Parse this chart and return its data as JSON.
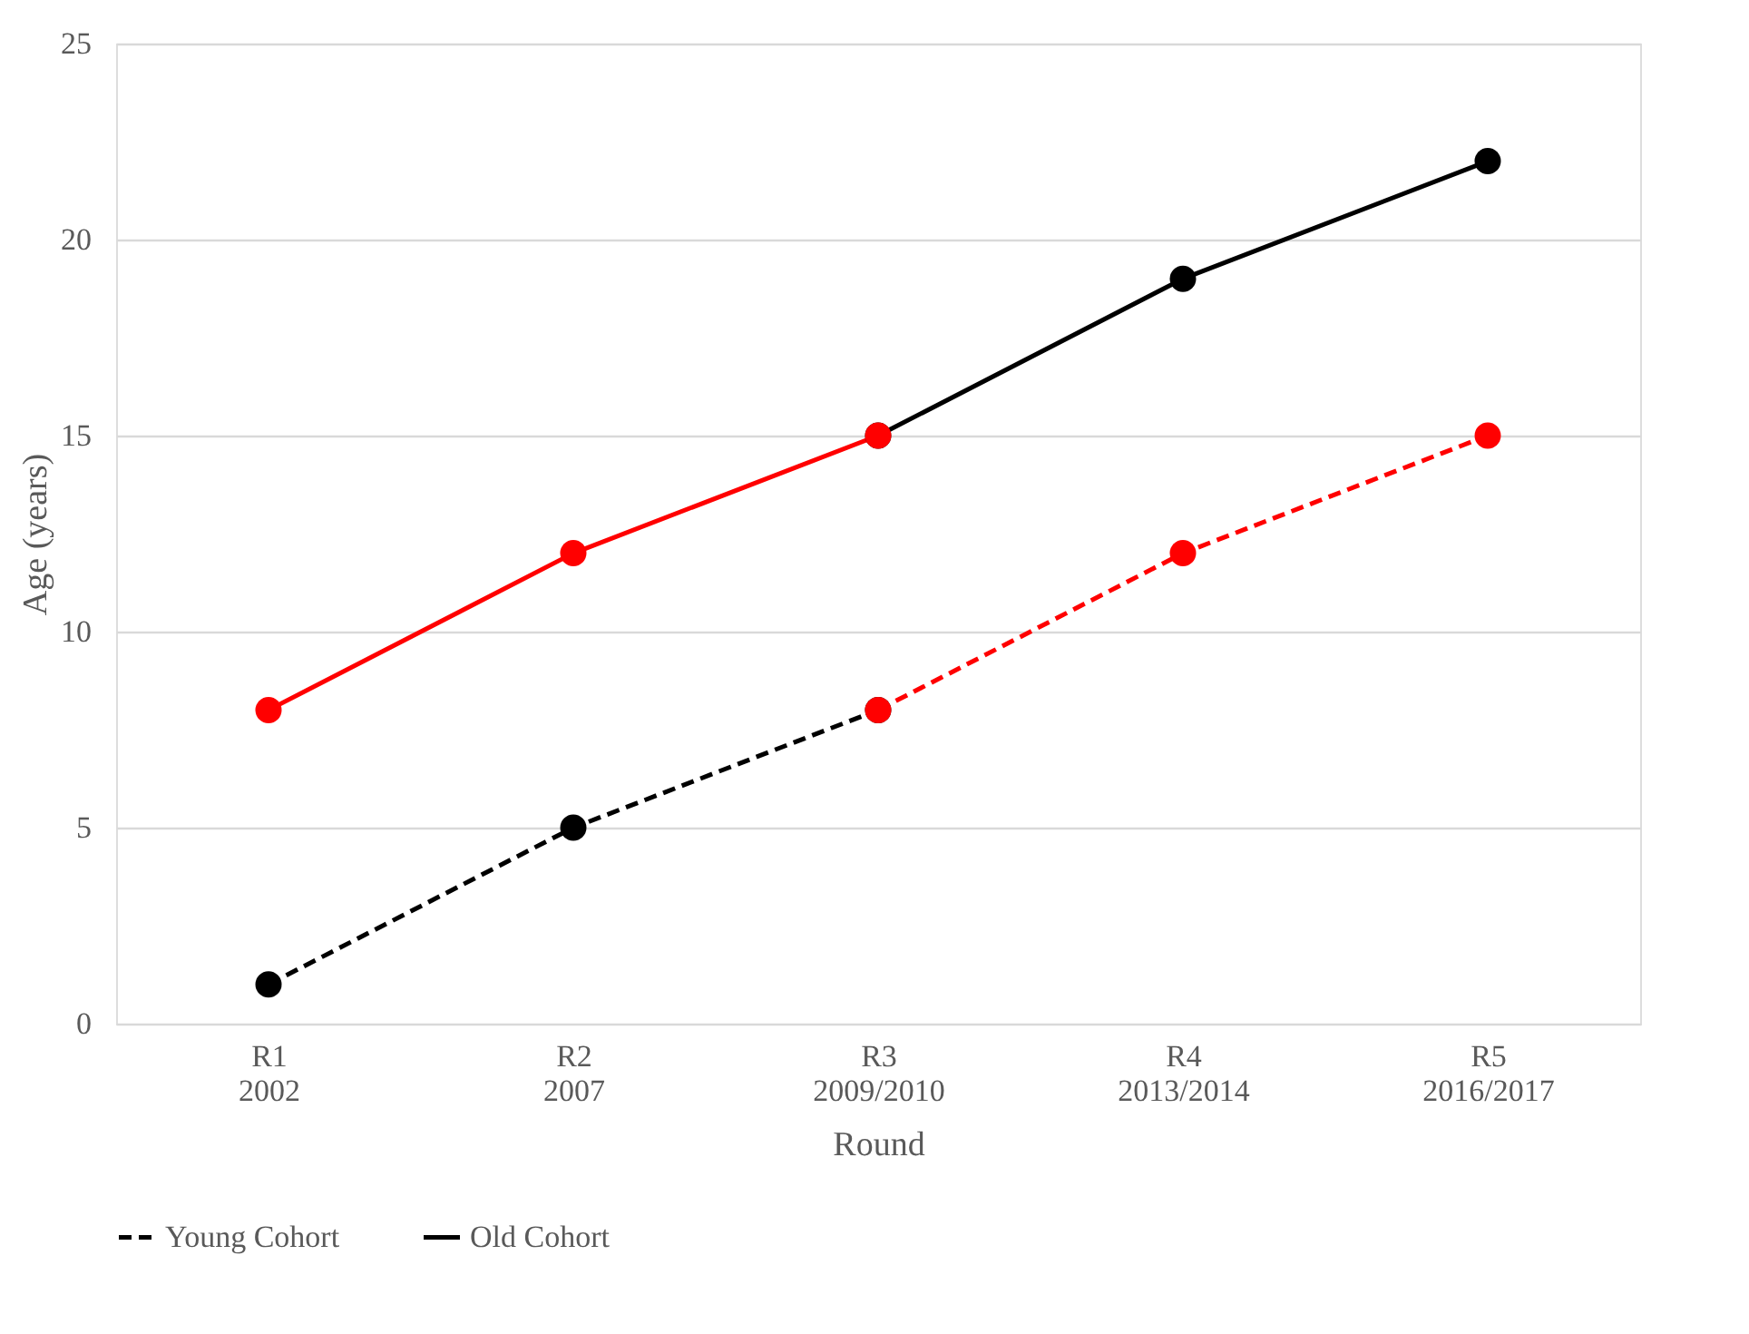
{
  "chart_data": {
    "type": "line",
    "xlabel": "Round",
    "ylabel": "Age (years)",
    "categories": [
      "R1\n2002",
      "R2\n2007",
      "R3\n2009/2010",
      "R4\n2013/2014",
      "R5\n2016/2017"
    ],
    "series": [
      {
        "name": "Young Cohort",
        "color": "#000000",
        "line_style": "dashed",
        "values": [
          1,
          5,
          8,
          null,
          null
        ]
      },
      {
        "name": "Old Cohort",
        "color": "#000000",
        "line_style": "solid",
        "values": [
          null,
          null,
          15,
          19,
          22
        ]
      },
      {
        "color": "#ff0000",
        "line_style": "dashed",
        "values": [
          null,
          null,
          8,
          12,
          15
        ]
      },
      {
        "color": "#ff0000",
        "line_style": "solid",
        "values": [
          8,
          12,
          15,
          null,
          null
        ]
      }
    ],
    "ylim": [
      0,
      25
    ],
    "yticks": [
      0,
      5,
      10,
      15,
      20,
      25
    ],
    "grid": "y",
    "legend": "bottom",
    "marker": "circle"
  }
}
